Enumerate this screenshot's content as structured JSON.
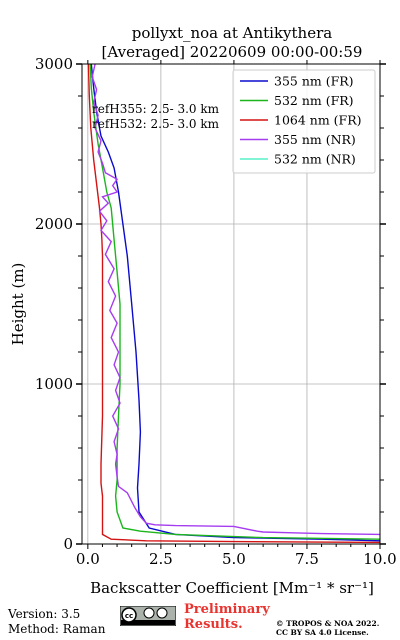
{
  "chart_data": {
    "type": "line",
    "title_line1": "pollyxt_noa at Antikythera",
    "title_line2": "[Averaged] 20220609 00:00-00:59",
    "xlabel": "Backscatter Coefficient [Mm⁻¹ * sr⁻¹]",
    "ylabel": "Height (m)",
    "xlim": [
      -0.2,
      10
    ],
    "ylim": [
      0,
      3000
    ],
    "xticks": [
      "0.0",
      "2.5",
      "5.0",
      "7.5",
      "10.0"
    ],
    "yticks": [
      "0",
      "1000",
      "2000",
      "3000"
    ],
    "grid": true,
    "legend_position": "top-right",
    "annotations": [
      "refH355:  2.5- 3.0 km",
      "refH532:  2.5- 3.0 km"
    ],
    "series": [
      {
        "name": "355 nm (FR)",
        "color": "#0a0acd",
        "x": [
          10,
          8,
          5,
          3,
          2.1,
          1.75,
          1.7,
          1.75,
          1.8,
          1.75,
          1.65,
          1.5,
          1.35,
          1.2,
          1.05,
          0.9,
          0.7,
          0.45,
          0.3,
          0.2,
          0.12
        ],
        "y": [
          20,
          30,
          40,
          60,
          100,
          200,
          350,
          500,
          700,
          900,
          1200,
          1500,
          1800,
          2000,
          2200,
          2350,
          2450,
          2550,
          2700,
          2850,
          3000
        ]
      },
      {
        "name": "532 nm (FR)",
        "color": "#1db51d",
        "x": [
          10,
          6,
          3,
          1.8,
          1.2,
          1.0,
          0.95,
          1.0,
          1.0,
          1.05,
          1.1,
          1.1,
          1.0,
          0.9,
          0.8,
          0.65,
          0.5,
          0.35,
          0.2,
          0.12,
          0.08
        ],
        "y": [
          30,
          40,
          60,
          80,
          100,
          200,
          300,
          400,
          600,
          800,
          1000,
          1500,
          1700,
          1900,
          2100,
          2200,
          2350,
          2500,
          2700,
          2850,
          3000
        ]
      },
      {
        "name": "1064 nm (FR)",
        "color": "#d31414",
        "x": [
          10,
          5,
          2,
          0.8,
          0.5,
          0.5,
          0.45,
          0.45,
          0.5,
          0.5,
          0.5,
          0.5,
          0.5,
          0.48,
          0.45,
          0.4,
          0.3,
          0.2,
          0.1,
          0.05,
          0.02
        ],
        "y": [
          10,
          15,
          20,
          30,
          60,
          300,
          380,
          500,
          800,
          1100,
          1400,
          1700,
          1800,
          1900,
          2000,
          2100,
          2250,
          2400,
          2600,
          2800,
          3000
        ]
      },
      {
        "name": "355 nm (NR)",
        "color": "#a63cf0",
        "x": [
          10,
          8,
          7,
          6,
          5.8,
          5,
          3,
          2.3,
          2.0,
          1.8,
          1.6,
          1.35,
          1.05,
          1.0,
          0.95,
          1.0,
          0.9,
          1.05,
          0.85,
          1.1,
          0.95,
          1.1,
          0.9,
          1.05,
          0.8,
          1.0,
          0.75,
          0.95,
          0.7,
          0.9,
          0.6,
          0.8,
          0.45,
          0.65,
          0.4,
          0.7,
          0.5,
          1.0,
          0.85,
          1.0,
          0.6,
          0.5,
          0.35,
          0.45,
          0.25,
          0.35,
          0.2,
          0.3,
          0.15,
          0.25
        ],
        "y": [
          60,
          65,
          70,
          75,
          80,
          110,
          115,
          120,
          130,
          170,
          230,
          320,
          360,
          420,
          500,
          560,
          640,
          720,
          800,
          880,
          960,
          1040,
          1120,
          1200,
          1290,
          1380,
          1460,
          1550,
          1640,
          1720,
          1810,
          1890,
          1960,
          2020,
          2080,
          2130,
          2170,
          2200,
          2240,
          2280,
          2320,
          2380,
          2450,
          2520,
          2600,
          2680,
          2760,
          2840,
          2920,
          3000
        ]
      },
      {
        "name": "532 nm (NR)",
        "color": "#58f0c8",
        "x": [],
        "y": []
      }
    ]
  },
  "footer": {
    "version": "Version: 3.5",
    "method": "Method: Raman",
    "preliminary_line1": "Preliminary",
    "preliminary_line2": "Results.",
    "copyright_line1": "© TROPOS & NOA 2022.",
    "copyright_line2": "CC BY SA 4.0 License."
  }
}
